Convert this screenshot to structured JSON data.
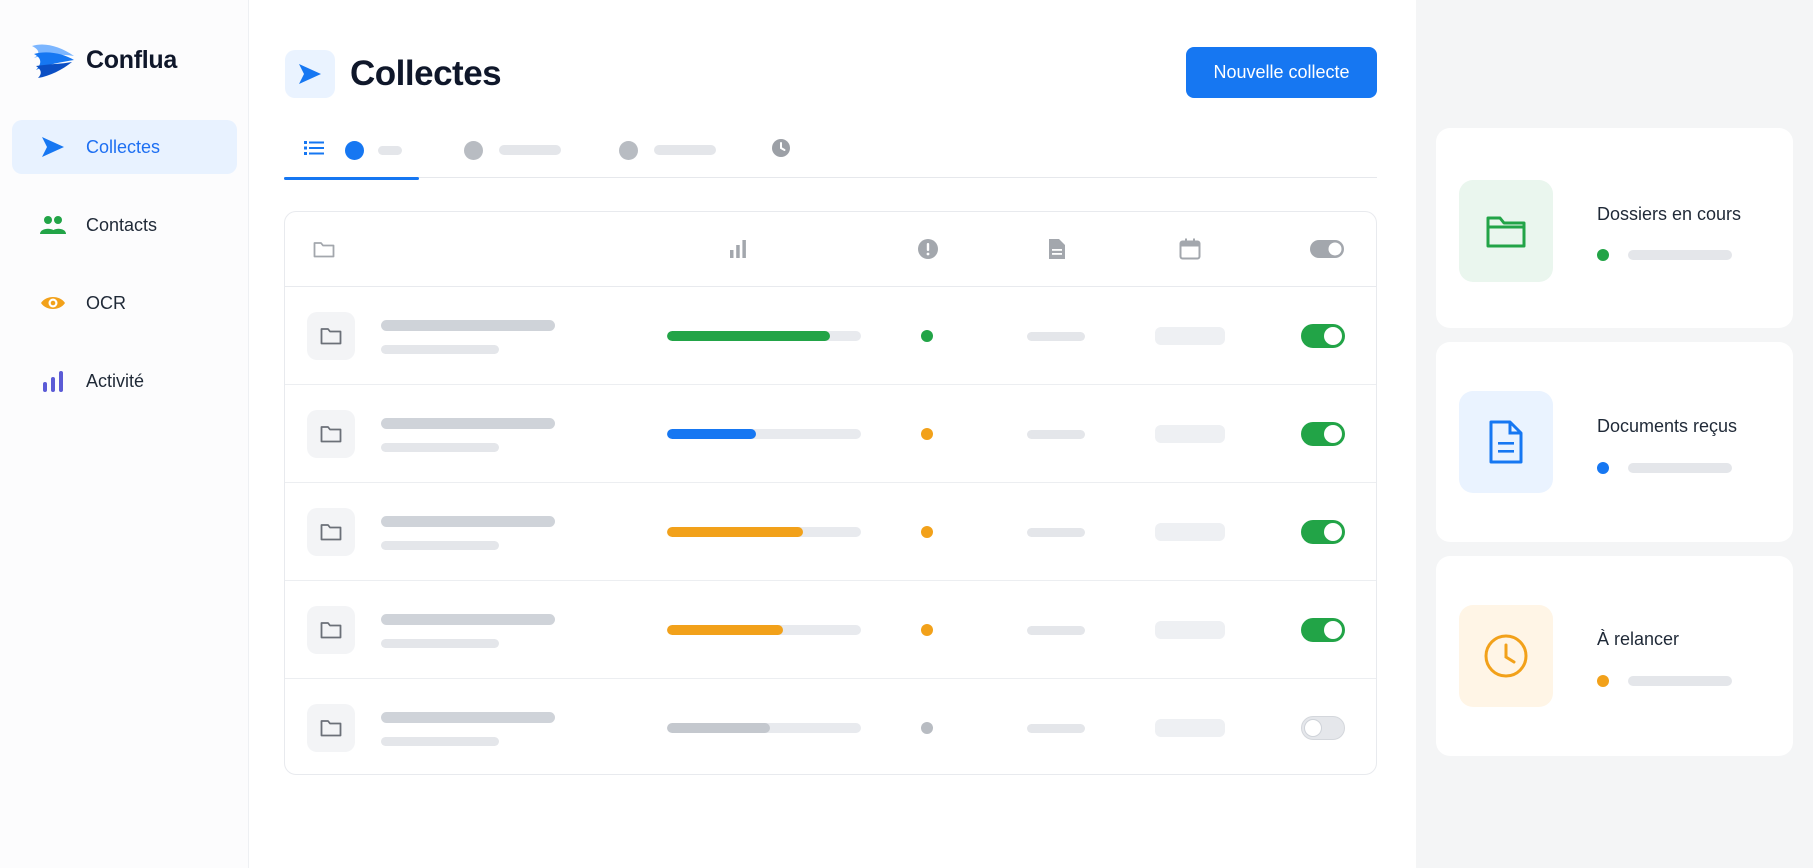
{
  "app": {
    "name": "Conflua",
    "colors": {
      "accent": "#1677f2",
      "green": "#22a447",
      "orange": "#f2a11a",
      "grey": "#c4c8ce",
      "purple": "#5b5bd6"
    }
  },
  "sidebar": {
    "items": [
      {
        "label": "Collectes",
        "icon": "send-icon",
        "active": true
      },
      {
        "label": "Contacts",
        "icon": "users-icon",
        "active": false
      },
      {
        "label": "OCR",
        "icon": "eye-icon",
        "active": false
      },
      {
        "label": "Activité",
        "icon": "bar-chart-icon",
        "active": false
      }
    ]
  },
  "header": {
    "title": "Collectes",
    "icon": "send-icon",
    "primary_button": "Nouvelle collecte"
  },
  "tabs": [
    {
      "icon": "list-icon",
      "active": true,
      "dot_color": "#1677f2"
    },
    {
      "active": false,
      "dot_color": "#b8bcc2"
    },
    {
      "active": false,
      "dot_color": "#b8bcc2"
    },
    {
      "icon": "clock-icon",
      "active": false
    }
  ],
  "table": {
    "columns": [
      {
        "icon": "folder-icon"
      },
      {
        "icon": "bar-chart-icon"
      },
      {
        "icon": "alert-circle-icon"
      },
      {
        "icon": "document-icon"
      },
      {
        "icon": "calendar-icon"
      },
      {
        "icon": "toggle-icon"
      }
    ],
    "rows": [
      {
        "progress": 0.84,
        "progress_color": "#22a447",
        "status_color": "#22a447",
        "enabled": true
      },
      {
        "progress": 0.46,
        "progress_color": "#1677f2",
        "status_color": "#f2a11a",
        "enabled": true
      },
      {
        "progress": 0.7,
        "progress_color": "#f2a11a",
        "status_color": "#f2a11a",
        "enabled": true
      },
      {
        "progress": 0.6,
        "progress_color": "#f2a11a",
        "status_color": "#f2a11a",
        "enabled": true
      },
      {
        "progress": 0.53,
        "progress_color": "#c4c8ce",
        "status_color": "#b8bcc2",
        "enabled": false
      }
    ]
  },
  "summary_cards": [
    {
      "label": "Dossiers en cours",
      "icon": "folder-icon",
      "icon_bg": "#eaf6ee",
      "icon_color": "#22a447",
      "dot_color": "#22a447"
    },
    {
      "label": "Documents reçus",
      "icon": "document-icon",
      "icon_bg": "#eaf3ff",
      "icon_color": "#1677f2",
      "dot_color": "#1677f2"
    },
    {
      "label": "À relancer",
      "icon": "clock-icon",
      "icon_bg": "#fff5e6",
      "icon_color": "#f2a11a",
      "dot_color": "#f2a11a"
    }
  ]
}
